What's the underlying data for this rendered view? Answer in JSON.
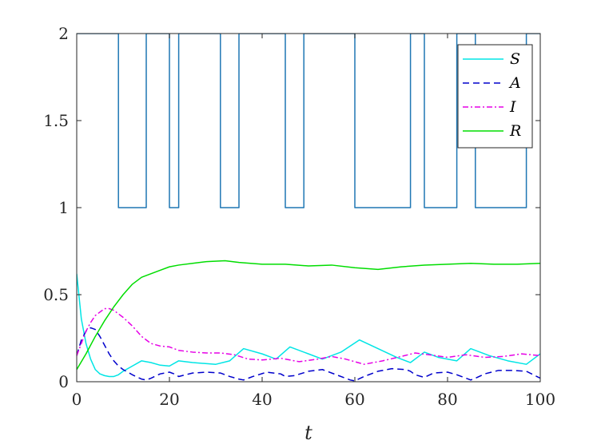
{
  "chart_data": {
    "type": "line",
    "xlabel": "t",
    "ylabel": "",
    "title": "",
    "xlim": [
      0,
      100
    ],
    "ylim": [
      0,
      2
    ],
    "xticks": [
      "0",
      "20",
      "40",
      "60",
      "80",
      "100"
    ],
    "yticks": [
      "0",
      "0.5",
      "1",
      "1.5",
      "2"
    ],
    "grid": false,
    "legend_position": "top-right",
    "series": [
      {
        "name": "",
        "kind": "step",
        "color": "#1f77b4",
        "dash": "",
        "x": [
          0,
          9,
          9,
          15,
          15,
          20,
          20,
          22,
          22,
          31,
          31,
          35,
          35,
          45,
          45,
          49,
          49,
          60,
          60,
          72,
          72,
          75,
          75,
          82,
          82,
          86,
          86,
          97,
          97,
          100
        ],
        "y": [
          2,
          2,
          1,
          1,
          2,
          2,
          1,
          1,
          2,
          2,
          1,
          1,
          2,
          2,
          1,
          1,
          2,
          2,
          1,
          1,
          2,
          2,
          1,
          1,
          2,
          2,
          1,
          1,
          2,
          2
        ]
      },
      {
        "name": "S",
        "color": "#00e5e5",
        "dash": "",
        "x": [
          0,
          1,
          2,
          3,
          4,
          5,
          6,
          7,
          8,
          9,
          10,
          12,
          14,
          16,
          18,
          20,
          22,
          25,
          30,
          33,
          36,
          40,
          43,
          46,
          50,
          53,
          57,
          61,
          65,
          69,
          72,
          75,
          78,
          82,
          85,
          89,
          93,
          97,
          100
        ],
        "y": [
          0.62,
          0.36,
          0.22,
          0.13,
          0.07,
          0.045,
          0.035,
          0.03,
          0.03,
          0.04,
          0.06,
          0.09,
          0.12,
          0.11,
          0.095,
          0.09,
          0.12,
          0.11,
          0.1,
          0.12,
          0.19,
          0.16,
          0.13,
          0.2,
          0.16,
          0.13,
          0.17,
          0.24,
          0.19,
          0.14,
          0.11,
          0.17,
          0.14,
          0.12,
          0.19,
          0.15,
          0.12,
          0.1,
          0.16
        ]
      },
      {
        "name": "A",
        "color": "#0000cc",
        "dash": "8,5",
        "x": [
          0,
          1,
          2,
          3,
          4,
          5,
          6,
          7,
          8,
          9,
          10,
          12,
          14,
          15,
          16,
          18,
          20,
          21,
          22,
          25,
          28,
          31,
          33,
          35,
          36,
          38,
          41,
          44,
          45,
          47,
          50,
          53,
          56,
          59,
          60,
          62,
          65,
          68,
          71,
          72,
          73,
          75,
          77,
          80,
          82,
          84,
          85,
          86,
          88,
          91,
          94,
          97,
          100
        ],
        "y": [
          0.15,
          0.24,
          0.29,
          0.31,
          0.3,
          0.26,
          0.21,
          0.16,
          0.12,
          0.09,
          0.07,
          0.04,
          0.015,
          0.01,
          0.02,
          0.045,
          0.055,
          0.045,
          0.03,
          0.05,
          0.055,
          0.05,
          0.03,
          0.015,
          0.01,
          0.03,
          0.055,
          0.045,
          0.03,
          0.035,
          0.06,
          0.07,
          0.04,
          0.01,
          0.005,
          0.03,
          0.06,
          0.075,
          0.07,
          0.06,
          0.04,
          0.025,
          0.05,
          0.055,
          0.04,
          0.02,
          0.01,
          0.02,
          0.045,
          0.065,
          0.065,
          0.06,
          0.02
        ]
      },
      {
        "name": "I",
        "color": "#e600e6",
        "dash": "7,3,2,3",
        "x": [
          0,
          1,
          2,
          3,
          4,
          5,
          6,
          7,
          8,
          10,
          12,
          14,
          16,
          18,
          20,
          22,
          25,
          28,
          31,
          34,
          37,
          40,
          44,
          48,
          52,
          55,
          58,
          62,
          66,
          70,
          73,
          76,
          80,
          84,
          88,
          92,
          96,
          100
        ],
        "y": [
          0.15,
          0.22,
          0.29,
          0.34,
          0.38,
          0.4,
          0.42,
          0.42,
          0.41,
          0.37,
          0.32,
          0.26,
          0.22,
          0.205,
          0.2,
          0.18,
          0.17,
          0.165,
          0.165,
          0.155,
          0.13,
          0.125,
          0.135,
          0.115,
          0.13,
          0.145,
          0.13,
          0.1,
          0.12,
          0.145,
          0.165,
          0.155,
          0.14,
          0.155,
          0.14,
          0.145,
          0.16,
          0.15
        ]
      },
      {
        "name": "R",
        "color": "#00dd00",
        "dash": "",
        "x": [
          0,
          2,
          4,
          6,
          8,
          10,
          12,
          14,
          16,
          18,
          20,
          22,
          25,
          28,
          32,
          35,
          40,
          45,
          50,
          55,
          60,
          65,
          70,
          75,
          80,
          85,
          90,
          95,
          100
        ],
        "y": [
          0.07,
          0.16,
          0.26,
          0.35,
          0.43,
          0.5,
          0.56,
          0.6,
          0.62,
          0.64,
          0.66,
          0.67,
          0.68,
          0.69,
          0.695,
          0.685,
          0.675,
          0.675,
          0.665,
          0.67,
          0.655,
          0.645,
          0.66,
          0.67,
          0.675,
          0.68,
          0.675,
          0.675,
          0.68
        ]
      }
    ]
  },
  "colors": {
    "axis": "#262626",
    "background": "#ffffff"
  }
}
